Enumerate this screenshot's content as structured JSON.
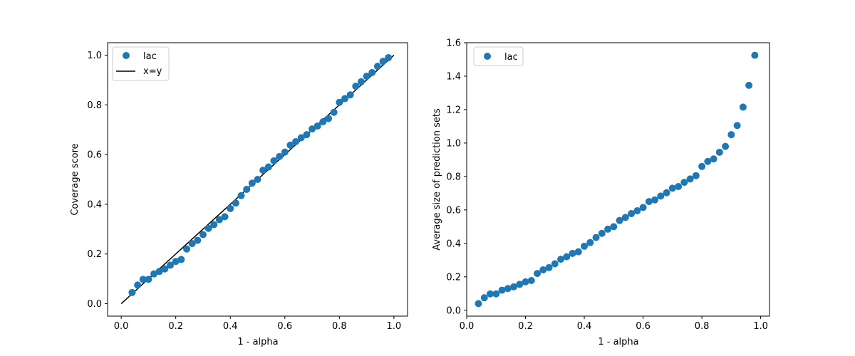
{
  "colors": {
    "marker": "#1f77b4",
    "identity_line": "#000000",
    "axes": "#000000",
    "background": "#ffffff"
  },
  "chart_data": [
    {
      "type": "scatter",
      "xlabel": "1 - alpha",
      "ylabel": "Coverage score",
      "xlim": [
        -0.05,
        1.05
      ],
      "ylim": [
        -0.05,
        1.05
      ],
      "xticks": [
        "0.0",
        "0.2",
        "0.4",
        "0.6",
        "0.8",
        "1.0"
      ],
      "yticks": [
        "0.0",
        "0.2",
        "0.4",
        "0.6",
        "0.8",
        "1.0"
      ],
      "legend": {
        "placement": "upper-left",
        "entries": [
          "lac",
          "x=y"
        ]
      },
      "grid": false,
      "series": [
        {
          "name": "lac",
          "kind": "scatter",
          "x": [
            0.04,
            0.06,
            0.08,
            0.1,
            0.12,
            0.14,
            0.16,
            0.18,
            0.2,
            0.22,
            0.24,
            0.26,
            0.28,
            0.3,
            0.32,
            0.34,
            0.36,
            0.38,
            0.4,
            0.42,
            0.44,
            0.46,
            0.48,
            0.5,
            0.52,
            0.54,
            0.56,
            0.58,
            0.6,
            0.62,
            0.64,
            0.66,
            0.68,
            0.7,
            0.72,
            0.74,
            0.76,
            0.78,
            0.8,
            0.82,
            0.84,
            0.86,
            0.88,
            0.9,
            0.92,
            0.94,
            0.96,
            0.98
          ],
          "y": [
            0.045,
            0.075,
            0.098,
            0.098,
            0.12,
            0.13,
            0.14,
            0.155,
            0.17,
            0.178,
            0.22,
            0.242,
            0.255,
            0.278,
            0.303,
            0.318,
            0.338,
            0.35,
            0.383,
            0.405,
            0.435,
            0.46,
            0.485,
            0.5,
            0.537,
            0.55,
            0.575,
            0.592,
            0.61,
            0.638,
            0.652,
            0.668,
            0.68,
            0.703,
            0.715,
            0.732,
            0.745,
            0.77,
            0.81,
            0.825,
            0.84,
            0.875,
            0.893,
            0.915,
            0.93,
            0.955,
            0.975,
            0.99
          ]
        },
        {
          "name": "x=y",
          "kind": "line",
          "x": [
            0.0,
            1.0
          ],
          "y": [
            0.0,
            1.0
          ]
        }
      ]
    },
    {
      "type": "scatter",
      "xlabel": "1 - alpha",
      "ylabel": "Average size of prediction sets",
      "xlim": [
        0.0,
        1.03
      ],
      "ylim": [
        -0.035,
        1.6
      ],
      "xticks": [
        "0.0",
        "0.2",
        "0.4",
        "0.6",
        "0.8",
        "1.0"
      ],
      "yticks": [
        "0.0",
        "0.2",
        "0.4",
        "0.6",
        "0.8",
        "1.0",
        "1.2",
        "1.4",
        "1.6"
      ],
      "legend": {
        "placement": "upper-left",
        "entries": [
          "lac"
        ]
      },
      "grid": false,
      "series": [
        {
          "name": "lac",
          "kind": "scatter",
          "x": [
            0.04,
            0.06,
            0.08,
            0.1,
            0.12,
            0.14,
            0.16,
            0.18,
            0.2,
            0.22,
            0.24,
            0.26,
            0.28,
            0.3,
            0.32,
            0.34,
            0.36,
            0.38,
            0.4,
            0.42,
            0.44,
            0.46,
            0.48,
            0.5,
            0.52,
            0.54,
            0.56,
            0.58,
            0.6,
            0.62,
            0.64,
            0.66,
            0.68,
            0.7,
            0.72,
            0.74,
            0.76,
            0.78,
            0.8,
            0.82,
            0.84,
            0.86,
            0.88,
            0.9,
            0.92,
            0.94,
            0.96,
            0.98
          ],
          "y": [
            0.04,
            0.075,
            0.098,
            0.098,
            0.12,
            0.13,
            0.14,
            0.155,
            0.17,
            0.178,
            0.22,
            0.242,
            0.255,
            0.278,
            0.305,
            0.32,
            0.34,
            0.35,
            0.383,
            0.405,
            0.435,
            0.46,
            0.485,
            0.5,
            0.537,
            0.555,
            0.578,
            0.595,
            0.615,
            0.65,
            0.66,
            0.683,
            0.703,
            0.73,
            0.74,
            0.765,
            0.785,
            0.805,
            0.86,
            0.89,
            0.905,
            0.945,
            0.98,
            1.05,
            1.105,
            1.215,
            1.345,
            1.525
          ]
        }
      ]
    }
  ]
}
